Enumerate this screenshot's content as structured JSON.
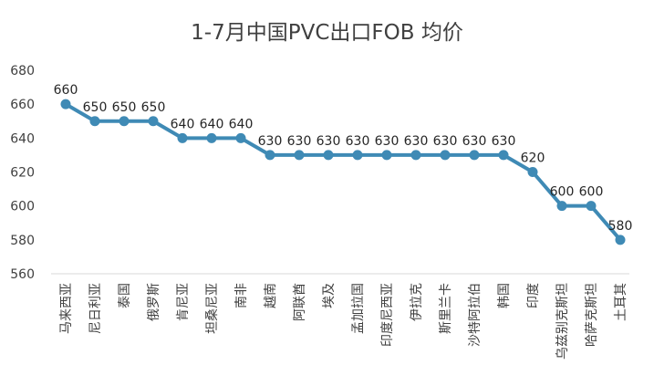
{
  "chart_data": {
    "type": "line",
    "title": "1-7月中国PVC出口FOB 均价",
    "categories": [
      "马来西亚",
      "尼日利亚",
      "泰国",
      "俄罗斯",
      "肯尼亚",
      "坦桑尼亚",
      "南非",
      "越南",
      "阿联酋",
      "埃及",
      "孟加拉国",
      "印度尼西亚",
      "伊拉克",
      "斯里兰卡",
      "沙特阿拉伯",
      "韩国",
      "印度",
      "乌兹别克斯坦",
      "哈萨克斯坦",
      "土耳其"
    ],
    "values": [
      660,
      650,
      650,
      650,
      640,
      640,
      640,
      630,
      630,
      630,
      630,
      630,
      630,
      630,
      630,
      630,
      620,
      600,
      600,
      580
    ],
    "ylim": [
      560,
      680
    ],
    "yticks": [
      560,
      580,
      600,
      620,
      640,
      660,
      680
    ],
    "grid": false,
    "data_labels": true,
    "line_color": "#3F8AB5",
    "text_color": "#404040"
  }
}
